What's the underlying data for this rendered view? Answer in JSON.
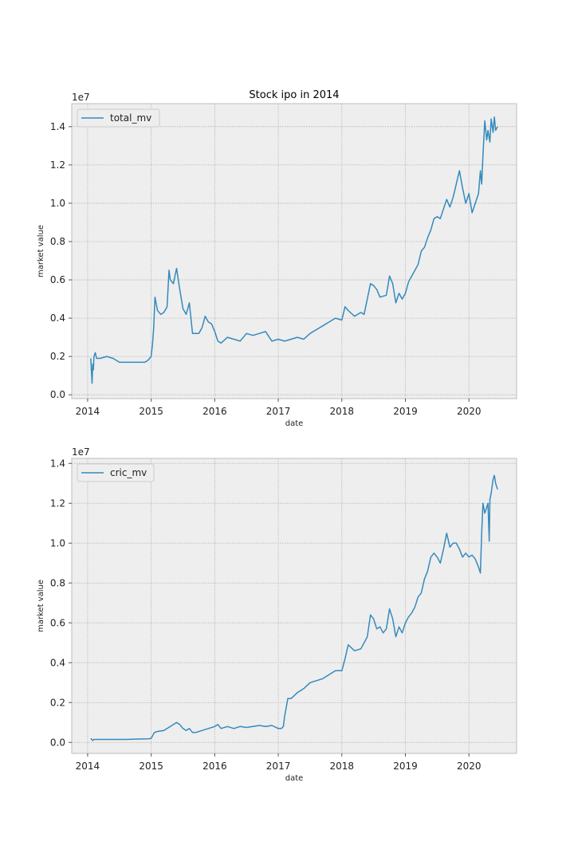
{
  "chart_data": [
    {
      "type": "line",
      "title": "Stock ipo in 2014",
      "xlabel": "date",
      "ylabel": "market value",
      "y_exponent_label": "1e7",
      "xlim": [
        2013.75,
        2020.75
      ],
      "ylim": [
        -0.02,
        1.52
      ],
      "x_ticks": [
        2014,
        2015,
        2016,
        2017,
        2018,
        2019,
        2020
      ],
      "x_tick_labels": [
        "2014",
        "2015",
        "2016",
        "2017",
        "2018",
        "2019",
        "2020"
      ],
      "y_ticks": [
        0.0,
        0.2,
        0.4,
        0.6,
        0.8,
        1.0,
        1.2,
        1.4
      ],
      "y_tick_labels": [
        "0.0",
        "0.2",
        "0.4",
        "0.6",
        "0.8",
        "1.0",
        "1.2",
        "1.4"
      ],
      "grid": true,
      "legend_position": "top-left",
      "series": [
        {
          "name": "total_mv",
          "color": "#348abd",
          "x": [
            2014.05,
            2014.06,
            2014.07,
            2014.08,
            2014.09,
            2014.1,
            2014.12,
            2014.14,
            2014.2,
            2014.3,
            2014.4,
            2014.5,
            2014.55,
            2014.6,
            2014.7,
            2014.8,
            2014.9,
            2014.95,
            2015.0,
            2015.02,
            2015.04,
            2015.06,
            2015.1,
            2015.15,
            2015.2,
            2015.25,
            2015.28,
            2015.3,
            2015.35,
            2015.4,
            2015.45,
            2015.5,
            2015.55,
            2015.6,
            2015.65,
            2015.7,
            2015.75,
            2015.8,
            2015.85,
            2015.9,
            2015.95,
            2016.0,
            2016.05,
            2016.1,
            2016.2,
            2016.3,
            2016.4,
            2016.5,
            2016.6,
            2016.7,
            2016.8,
            2016.9,
            2017.0,
            2017.1,
            2017.2,
            2017.3,
            2017.4,
            2017.5,
            2017.6,
            2017.7,
            2017.8,
            2017.9,
            2018.0,
            2018.05,
            2018.1,
            2018.2,
            2018.3,
            2018.35,
            2018.4,
            2018.45,
            2018.5,
            2018.55,
            2018.6,
            2018.7,
            2018.75,
            2018.8,
            2018.85,
            2018.9,
            2018.95,
            2019.0,
            2019.05,
            2019.1,
            2019.15,
            2019.2,
            2019.25,
            2019.3,
            2019.35,
            2019.4,
            2019.45,
            2019.5,
            2019.55,
            2019.6,
            2019.65,
            2019.7,
            2019.75,
            2019.8,
            2019.85,
            2019.9,
            2019.95,
            2020.0,
            2020.05,
            2020.1,
            2020.15,
            2020.18,
            2020.2,
            2020.22,
            2020.25,
            2020.28,
            2020.3,
            2020.33,
            2020.35,
            2020.38,
            2020.4,
            2020.42,
            2020.45
          ],
          "values": [
            0.19,
            0.12,
            0.06,
            0.16,
            0.13,
            0.2,
            0.22,
            0.19,
            0.19,
            0.2,
            0.19,
            0.17,
            0.17,
            0.17,
            0.17,
            0.17,
            0.17,
            0.18,
            0.2,
            0.26,
            0.35,
            0.51,
            0.44,
            0.42,
            0.43,
            0.46,
            0.65,
            0.6,
            0.58,
            0.66,
            0.55,
            0.45,
            0.42,
            0.48,
            0.32,
            0.32,
            0.32,
            0.35,
            0.41,
            0.38,
            0.37,
            0.33,
            0.28,
            0.27,
            0.3,
            0.29,
            0.28,
            0.32,
            0.31,
            0.32,
            0.33,
            0.28,
            0.29,
            0.28,
            0.29,
            0.3,
            0.29,
            0.32,
            0.34,
            0.36,
            0.38,
            0.4,
            0.39,
            0.46,
            0.44,
            0.41,
            0.43,
            0.42,
            0.5,
            0.58,
            0.57,
            0.55,
            0.51,
            0.52,
            0.62,
            0.58,
            0.48,
            0.53,
            0.5,
            0.53,
            0.59,
            0.62,
            0.65,
            0.68,
            0.75,
            0.77,
            0.82,
            0.86,
            0.92,
            0.93,
            0.92,
            0.97,
            1.02,
            0.98,
            1.03,
            1.1,
            1.17,
            1.08,
            1.0,
            1.05,
            0.95,
            1.0,
            1.05,
            1.17,
            1.1,
            1.25,
            1.43,
            1.33,
            1.38,
            1.32,
            1.44,
            1.37,
            1.45,
            1.38,
            1.4
          ]
        }
      ]
    },
    {
      "type": "line",
      "title": "",
      "xlabel": "date",
      "ylabel": "market value",
      "y_exponent_label": "1e7",
      "xlim": [
        2013.75,
        2020.75
      ],
      "ylim": [
        -0.055,
        1.425
      ],
      "x_ticks": [
        2014,
        2015,
        2016,
        2017,
        2018,
        2019,
        2020
      ],
      "x_tick_labels": [
        "2014",
        "2015",
        "2016",
        "2017",
        "2018",
        "2019",
        "2020"
      ],
      "y_ticks": [
        0.0,
        0.2,
        0.4,
        0.6,
        0.8,
        1.0,
        1.2,
        1.4
      ],
      "y_tick_labels": [
        "0.0",
        "0.2",
        "0.4",
        "0.6",
        "0.8",
        "1.0",
        "1.2",
        "1.4"
      ],
      "grid": true,
      "legend_position": "top-left",
      "series": [
        {
          "name": "cric_mv",
          "color": "#348abd",
          "x": [
            2014.05,
            2014.08,
            2014.1,
            2014.2,
            2014.4,
            2014.6,
            2014.8,
            2014.95,
            2015.0,
            2015.05,
            2015.1,
            2015.2,
            2015.3,
            2015.4,
            2015.45,
            2015.5,
            2015.55,
            2015.6,
            2015.65,
            2015.7,
            2015.8,
            2015.9,
            2016.0,
            2016.05,
            2016.1,
            2016.2,
            2016.3,
            2016.4,
            2016.5,
            2016.6,
            2016.7,
            2016.8,
            2016.9,
            2017.0,
            2017.05,
            2017.08,
            2017.1,
            2017.15,
            2017.2,
            2017.3,
            2017.4,
            2017.5,
            2017.6,
            2017.7,
            2017.8,
            2017.9,
            2018.0,
            2018.05,
            2018.1,
            2018.2,
            2018.3,
            2018.35,
            2018.4,
            2018.45,
            2018.5,
            2018.55,
            2018.6,
            2018.65,
            2018.7,
            2018.75,
            2018.8,
            2018.85,
            2018.9,
            2018.95,
            2019.0,
            2019.05,
            2019.1,
            2019.15,
            2019.2,
            2019.25,
            2019.3,
            2019.35,
            2019.4,
            2019.45,
            2019.5,
            2019.55,
            2019.6,
            2019.65,
            2019.7,
            2019.75,
            2019.8,
            2019.85,
            2019.9,
            2019.95,
            2020.0,
            2020.05,
            2020.1,
            2020.15,
            2020.18,
            2020.2,
            2020.22,
            2020.25,
            2020.28,
            2020.3,
            2020.32,
            2020.33,
            2020.35,
            2020.38,
            2020.4,
            2020.42,
            2020.45
          ],
          "values": [
            0.02,
            0.01,
            0.015,
            0.015,
            0.015,
            0.015,
            0.017,
            0.018,
            0.02,
            0.05,
            0.055,
            0.06,
            0.08,
            0.1,
            0.09,
            0.07,
            0.06,
            0.07,
            0.05,
            0.05,
            0.06,
            0.07,
            0.08,
            0.09,
            0.07,
            0.08,
            0.07,
            0.08,
            0.075,
            0.08,
            0.085,
            0.08,
            0.085,
            0.07,
            0.07,
            0.08,
            0.13,
            0.22,
            0.22,
            0.25,
            0.27,
            0.3,
            0.31,
            0.32,
            0.34,
            0.36,
            0.36,
            0.42,
            0.49,
            0.46,
            0.47,
            0.5,
            0.53,
            0.64,
            0.62,
            0.57,
            0.58,
            0.55,
            0.57,
            0.67,
            0.62,
            0.53,
            0.58,
            0.55,
            0.6,
            0.63,
            0.65,
            0.68,
            0.73,
            0.75,
            0.82,
            0.86,
            0.93,
            0.95,
            0.93,
            0.9,
            0.97,
            1.05,
            0.98,
            1.0,
            1.0,
            0.97,
            0.93,
            0.95,
            0.93,
            0.94,
            0.92,
            0.88,
            0.85,
            1.05,
            1.2,
            1.15,
            1.18,
            1.2,
            1.01,
            1.22,
            1.25,
            1.32,
            1.34,
            1.3,
            1.27
          ]
        }
      ]
    }
  ]
}
